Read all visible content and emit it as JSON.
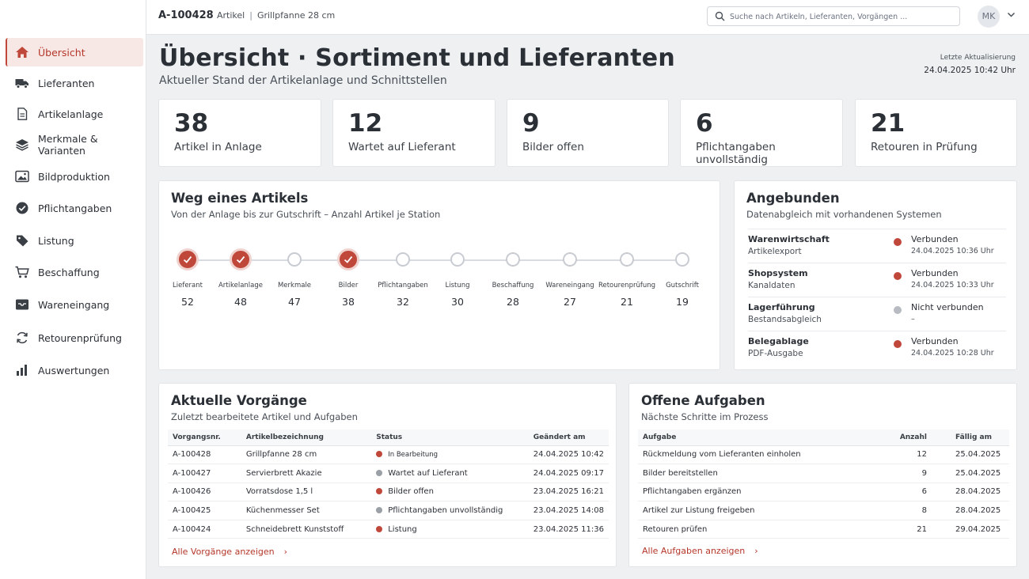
{
  "header": {
    "item_id": "A-100428",
    "crumb_section": "Artikel",
    "crumb_sep": "|",
    "crumb_item": "Grillpfanne 28 cm",
    "search_placeholder": "Suche nach Artikeln, Lieferanten, Vorgängen ...",
    "avatar_initials": "MK"
  },
  "sidebar": {
    "items": [
      {
        "label": "Übersicht",
        "icon": "home-icon"
      },
      {
        "label": "Lieferanten",
        "icon": "truck-icon"
      },
      {
        "label": "Artikelanlage",
        "icon": "document-icon"
      },
      {
        "label": "Merkmale & Varianten",
        "icon": "layers-icon"
      },
      {
        "label": "Bildproduktion",
        "icon": "image-icon"
      },
      {
        "label": "Pflichtangaben",
        "icon": "check-circle-icon"
      },
      {
        "label": "Listung",
        "icon": "tag-icon"
      },
      {
        "label": "Beschaffung",
        "icon": "cart-icon"
      },
      {
        "label": "Wareneingang",
        "icon": "inbox-icon"
      },
      {
        "label": "Retourenprüfung",
        "icon": "refresh-icon"
      },
      {
        "label": "Auswertungen",
        "icon": "bar-chart-icon"
      }
    ]
  },
  "page": {
    "title": "Übersicht · Sortiment und Lieferanten",
    "subtitle": "Aktueller Stand der Artikelanlage und Schnittstellen",
    "updated_label": "Letzte Aktualisierung",
    "updated_value": "24.04.2025 10:42 Uhr"
  },
  "kpis": [
    {
      "value": "38",
      "label": "Artikel in Anlage"
    },
    {
      "value": "12",
      "label": "Wartet auf Lieferant"
    },
    {
      "value": "9",
      "label": "Bilder offen"
    },
    {
      "value": "6",
      "label": "Pflichtangaben unvollständig"
    },
    {
      "value": "21",
      "label": "Retouren in Prüfung"
    }
  ],
  "flow": {
    "title": "Weg eines Artikels",
    "subtitle": "Von der Anlage bis zur Gutschrift – Anzahl Artikel je Station",
    "steps": [
      {
        "name": "Lieferant",
        "count": "52",
        "done": true
      },
      {
        "name": "Artikelanlage",
        "count": "48",
        "done": true
      },
      {
        "name": "Merkmale",
        "count": "47",
        "done": false
      },
      {
        "name": "Bilder",
        "count": "38",
        "done": true
      },
      {
        "name": "Pflichtangaben",
        "count": "32",
        "done": false
      },
      {
        "name": "Listung",
        "count": "30",
        "done": false
      },
      {
        "name": "Beschaffung",
        "count": "28",
        "done": false
      },
      {
        "name": "Wareneingang",
        "count": "27",
        "done": false
      },
      {
        "name": "Retourenprüfung",
        "count": "21",
        "done": false
      },
      {
        "name": "Gutschrift",
        "count": "19",
        "done": false
      }
    ]
  },
  "systems": {
    "title": "Angebunden",
    "subtitle": "Datenabgleich mit vorhandenen Systemen",
    "rows": [
      {
        "name": "Warenwirtschaft",
        "desc": "Artikelexport",
        "status": "Verbunden",
        "time": "24.04.2025 10:36 Uhr",
        "color": "#c0483b"
      },
      {
        "name": "Shopsystem",
        "desc": "Kanaldaten",
        "status": "Verbunden",
        "time": "24.04.2025 10:33 Uhr",
        "color": "#c0483b"
      },
      {
        "name": "Lagerführung",
        "desc": "Bestandsabgleich",
        "status": "Nicht verbunden",
        "time": "–",
        "color": "#b8bcc2"
      },
      {
        "name": "Belegablage",
        "desc": "PDF-Ausgabe",
        "status": "Verbunden",
        "time": "24.04.2025 10:28 Uhr",
        "color": "#c0483b"
      }
    ]
  },
  "processes": {
    "title": "Aktuelle Vorgänge",
    "subtitle": "Zuletzt bearbeitete Artikel und Aufgaben",
    "columns": [
      "Vorgangsnr.",
      "Artikelbezeichnung",
      "Status",
      "Geändert am"
    ],
    "rows": [
      {
        "id": "A-100428",
        "name": "Grillpfanne 28 cm",
        "status": "In Bearbeitung",
        "date": "24.04.2025 10:42",
        "color": "#c0483b"
      },
      {
        "id": "A-100427",
        "name": "Servierbrett Akazie",
        "status": "Wartet auf Lieferant",
        "date": "24.04.2025 09:17",
        "color": "#9aa0a6"
      },
      {
        "id": "A-100426",
        "name": "Vorratsdose 1,5 l",
        "status": "Bilder offen",
        "date": "23.04.2025 16:21",
        "color": "#c0483b"
      },
      {
        "id": "A-100425",
        "name": "Küchenmesser Set",
        "status": "Pflichtangaben unvollständig",
        "date": "23.04.2025 14:08",
        "color": "#9aa0a6"
      },
      {
        "id": "A-100424",
        "name": "Schneidebrett Kunststoff",
        "status": "Listung",
        "date": "23.04.2025 11:36",
        "color": "#c0483b"
      }
    ],
    "link": "Alle Vorgänge anzeigen"
  },
  "tasks": {
    "title": "Offene Aufgaben",
    "subtitle": "Nächste Schritte im Prozess",
    "columns": [
      "Aufgabe",
      "Anzahl",
      "Fällig am"
    ],
    "rows": [
      {
        "task": "Rückmeldung vom Lieferanten einholen",
        "count": "12",
        "due": "25.04.2025"
      },
      {
        "task": "Bilder bereitstellen",
        "count": "9",
        "due": "25.04.2025"
      },
      {
        "task": "Pflichtangaben ergänzen",
        "count": "6",
        "due": "28.04.2025"
      },
      {
        "task": "Artikel zur Listung freigeben",
        "count": "8",
        "due": "28.04.2025"
      },
      {
        "task": "Retouren prüfen",
        "count": "21",
        "due": "29.04.2025"
      }
    ],
    "link": "Alle Aufgaben anzeigen"
  },
  "colors": {
    "accent": "#c0483b",
    "inactive": "#b8bcc2"
  }
}
